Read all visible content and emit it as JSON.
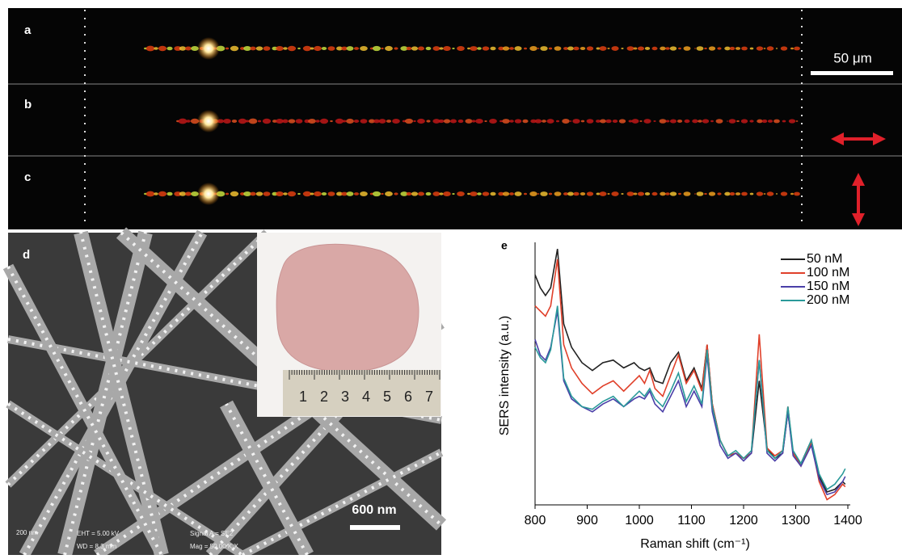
{
  "strip_panels": [
    {
      "label": "a"
    },
    {
      "label": "b"
    },
    {
      "label": "c"
    }
  ],
  "scale_bar_label": "50 μm",
  "sem_panel": {
    "label": "d",
    "scale_bar_label": "600 nm",
    "ruler_numbers": [
      "1",
      "2",
      "3",
      "4",
      "5",
      "6",
      "7"
    ],
    "info": [
      "200 nm",
      "EHT = 5.00 kV",
      "WD = 8.3 mm",
      "Signal A = SE2",
      "Mag = 50.00 K X"
    ]
  },
  "chart_data": {
    "type": "line",
    "panel_label": "e",
    "xlabel": "Raman shift (cm⁻¹)",
    "ylabel": "SERS intensity (a.u.)",
    "x": [
      800,
      810,
      820,
      830,
      843,
      855,
      870,
      890,
      910,
      930,
      950,
      970,
      990,
      1000,
      1010,
      1020,
      1030,
      1045,
      1060,
      1075,
      1090,
      1105,
      1120,
      1130,
      1140,
      1155,
      1170,
      1185,
      1200,
      1215,
      1230,
      1245,
      1260,
      1275,
      1285,
      1295,
      1310,
      1330,
      1345,
      1360,
      1375,
      1390,
      1395
    ],
    "series": [
      {
        "name": "50 nM",
        "color": "#222222",
        "values": [
          89,
          84,
          81,
          84,
          99,
          70,
          61,
          55,
          52,
          55,
          56,
          53,
          55,
          53,
          52,
          53,
          48,
          47,
          55,
          59,
          48,
          53,
          45,
          62,
          39,
          25,
          19,
          20,
          18,
          20,
          48,
          22,
          18,
          20,
          36,
          20,
          16,
          25,
          11,
          5,
          6,
          9,
          8
        ]
      },
      {
        "name": "100 nM",
        "color": "#e0402a",
        "values": [
          77,
          75,
          73,
          77,
          95,
          62,
          53,
          47,
          43,
          46,
          48,
          44,
          48,
          50,
          47,
          52,
          45,
          42,
          50,
          58,
          47,
          52,
          44,
          62,
          39,
          25,
          19,
          20,
          18,
          20,
          66,
          22,
          19,
          21,
          38,
          20,
          15,
          24,
          9,
          2,
          4,
          8,
          7
        ]
      },
      {
        "name": "150 nM",
        "color": "#4a3fa8",
        "values": [
          64,
          58,
          56,
          61,
          75,
          48,
          41,
          38,
          36,
          39,
          41,
          38,
          41,
          42,
          41,
          44,
          39,
          36,
          42,
          48,
          38,
          44,
          38,
          58,
          36,
          23,
          18,
          20,
          17,
          20,
          56,
          20,
          17,
          20,
          36,
          19,
          15,
          23,
          10,
          4,
          5,
          9,
          11
        ]
      },
      {
        "name": "200 nM",
        "color": "#2a9a9a",
        "values": [
          61,
          57,
          55,
          60,
          77,
          49,
          42,
          38,
          37,
          40,
          42,
          38,
          42,
          44,
          42,
          45,
          41,
          38,
          44,
          51,
          40,
          46,
          39,
          60,
          38,
          25,
          19,
          21,
          18,
          21,
          56,
          21,
          18,
          21,
          38,
          21,
          16,
          25,
          12,
          6,
          8,
          12,
          14
        ]
      }
    ],
    "xlim": [
      800,
      1400
    ],
    "xticks": [
      800,
      900,
      1000,
      1100,
      1200,
      1300,
      1400
    ],
    "ylim": [
      0,
      100
    ],
    "legend": "upper-right"
  }
}
